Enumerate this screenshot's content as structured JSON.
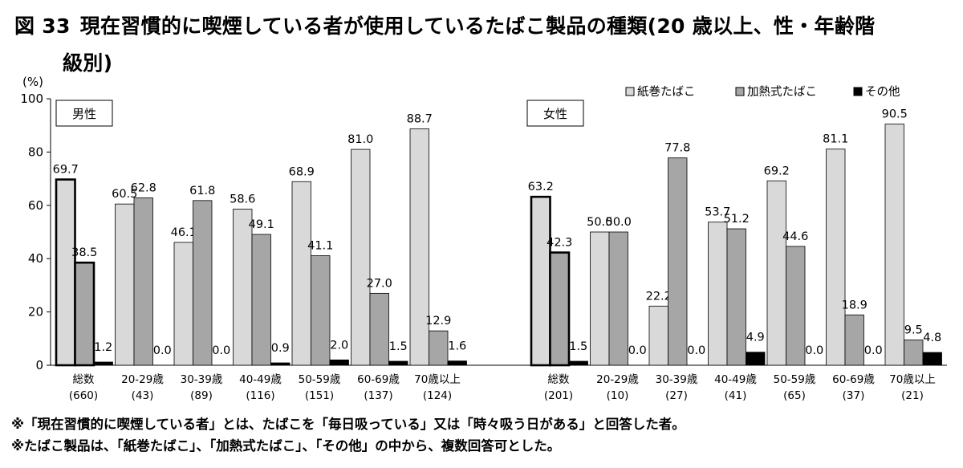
{
  "title": {
    "number": "図 33",
    "line1": "現在習慣的に喫煙している者が使用しているたばこ製品の種類(20 歳以上、性・年齢階",
    "line2": "級別)"
  },
  "notes": [
    "※「現在習慣的に喫煙している者」とは、たばこを「毎日吸っている」又は「時々吸う日がある」と回答した者。",
    "※たばこ製品は、「紙巻たばこ」、「加熱式たばこ」、「その他」の中から、複数回答可とした。"
  ],
  "colors": {
    "紙巻たばこ": "#d9d9d9",
    "加熱式たばこ": "#a6a6a6",
    "その他": "#000000"
  },
  "chart_data": {
    "type": "bar",
    "ylabel": "(%)",
    "ylim": [
      0,
      100
    ],
    "yticks": [
      0,
      20,
      40,
      60,
      80,
      100
    ],
    "legend": [
      "紙巻たばこ",
      "加熱式たばこ",
      "その他"
    ],
    "legend_position": "top-right",
    "panels": [
      {
        "name": "男性",
        "categories": [
          "総数",
          "20-29歳",
          "30-39歳",
          "40-49歳",
          "50-59歳",
          "60-69歳",
          "70歳以上"
        ],
        "counts": [
          "(660)",
          "(43)",
          "(89)",
          "(116)",
          "(151)",
          "(137)",
          "(124)"
        ],
        "series": [
          {
            "name": "紙巻たばこ",
            "values": [
              69.7,
              60.5,
              46.1,
              58.6,
              68.9,
              81.0,
              88.7
            ],
            "labels": [
              "69.7",
              "60.5",
              "46.1",
              "58.6",
              "68.9",
              "81.0",
              "88.7"
            ]
          },
          {
            "name": "加熱式たばこ",
            "values": [
              38.5,
              62.8,
              61.8,
              49.1,
              41.1,
              27.0,
              12.9
            ],
            "labels": [
              "38.5",
              "62.8",
              "61.8",
              "49.1",
              "41.1",
              "27.0",
              "12.9"
            ]
          },
          {
            "name": "その他",
            "values": [
              1.2,
              0.0,
              0.0,
              0.9,
              2.0,
              1.5,
              1.6
            ],
            "labels": [
              "1.2",
              "0.0",
              "0.0",
              "0.9",
              "2.0",
              "1.5",
              "1.6"
            ]
          }
        ]
      },
      {
        "name": "女性",
        "categories": [
          "総数",
          "20-29歳",
          "30-39歳",
          "40-49歳",
          "50-59歳",
          "60-69歳",
          "70歳以上"
        ],
        "counts": [
          "(201)",
          "(10)",
          "(27)",
          "(41)",
          "(65)",
          "(37)",
          "(21)"
        ],
        "series": [
          {
            "name": "紙巻たばこ",
            "values": [
              63.2,
              50.0,
              22.2,
              53.7,
              69.2,
              81.1,
              90.5
            ],
            "labels": [
              "63.2",
              "50.0",
              "22.2",
              "53.7",
              "69.2",
              "81.1",
              "90.5"
            ]
          },
          {
            "name": "加熱式たばこ",
            "values": [
              42.3,
              50.0,
              77.8,
              51.2,
              44.6,
              18.9,
              9.5
            ],
            "labels": [
              "42.3",
              "50.0",
              "77.8",
              "51.2",
              "44.6",
              "18.9",
              "9.5"
            ]
          },
          {
            "name": "その他",
            "values": [
              1.5,
              0.0,
              0.0,
              4.9,
              0.0,
              0.0,
              4.8
            ],
            "labels": [
              "1.5",
              "0.0",
              "0.0",
              "4.9",
              "0.0",
              "0.0",
              "4.8"
            ]
          }
        ]
      }
    ]
  }
}
